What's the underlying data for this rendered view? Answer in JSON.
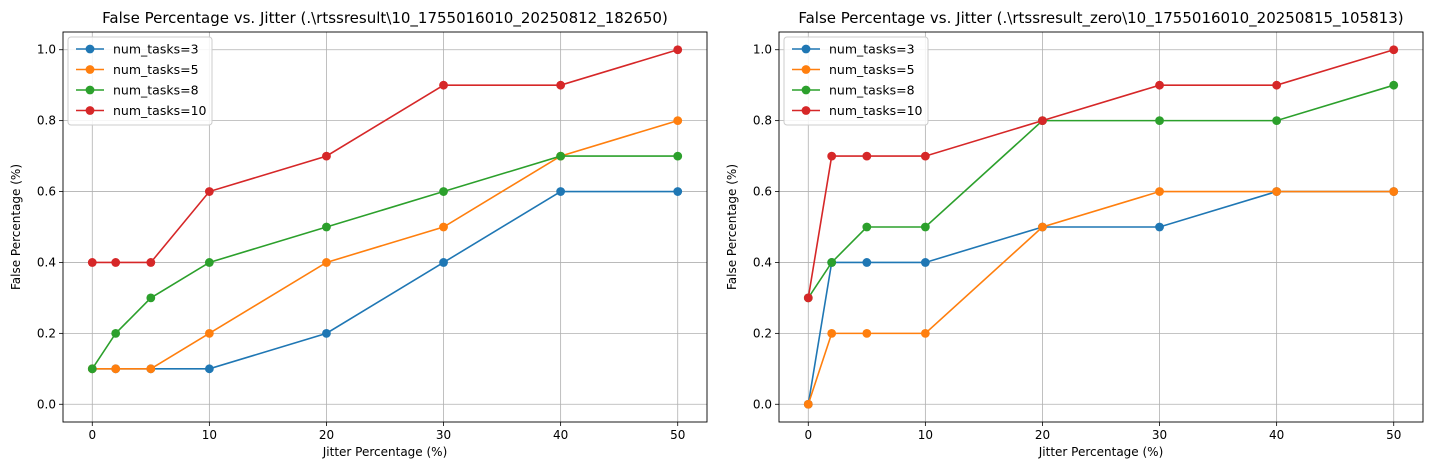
{
  "chart_data": [
    {
      "type": "line",
      "title": "False Percentage vs. Jitter (.\\rtssresult\\10_1755016010_20250812_182650)",
      "xlabel": "Jitter Percentage (%)",
      "ylabel": "False Percentage (%)",
      "xlim": [
        -2.5,
        52.5
      ],
      "ylim": [
        -0.05,
        1.05
      ],
      "xticks": [
        0,
        10,
        20,
        30,
        40,
        50
      ],
      "yticks": [
        0.0,
        0.2,
        0.4,
        0.6,
        0.8,
        1.0
      ],
      "grid": true,
      "legend_position": "upper-left",
      "x": [
        0,
        2,
        5,
        10,
        20,
        30,
        40,
        50
      ],
      "series": [
        {
          "name": "num_tasks=3",
          "color": "#1f77b4",
          "values": [
            0.1,
            0.1,
            0.1,
            0.1,
            0.2,
            0.4,
            0.6,
            0.6
          ]
        },
        {
          "name": "num_tasks=5",
          "color": "#ff7f0e",
          "values": [
            0.1,
            0.1,
            0.1,
            0.2,
            0.4,
            0.5,
            0.7,
            0.8
          ]
        },
        {
          "name": "num_tasks=8",
          "color": "#2ca02c",
          "values": [
            0.1,
            0.2,
            0.3,
            0.4,
            0.5,
            0.6,
            0.7,
            0.7
          ]
        },
        {
          "name": "num_tasks=10",
          "color": "#d62728",
          "values": [
            0.4,
            0.4,
            0.4,
            0.6,
            0.7,
            0.9,
            0.9,
            1.0
          ]
        }
      ]
    },
    {
      "type": "line",
      "title": "False Percentage vs. Jitter (.\\rtssresult_zero\\10_1755016010_20250815_105813)",
      "xlabel": "Jitter Percentage (%)",
      "ylabel": "False Percentage (%)",
      "xlim": [
        -2.5,
        52.5
      ],
      "ylim": [
        -0.05,
        1.05
      ],
      "xticks": [
        0,
        10,
        20,
        30,
        40,
        50
      ],
      "yticks": [
        0.0,
        0.2,
        0.4,
        0.6,
        0.8,
        1.0
      ],
      "grid": true,
      "legend_position": "upper-left",
      "x": [
        0,
        2,
        5,
        10,
        20,
        30,
        40,
        50
      ],
      "series": [
        {
          "name": "num_tasks=3",
          "color": "#1f77b4",
          "values": [
            0.0,
            0.4,
            0.4,
            0.4,
            0.5,
            0.5,
            0.6,
            0.6
          ]
        },
        {
          "name": "num_tasks=5",
          "color": "#ff7f0e",
          "values": [
            0.0,
            0.2,
            0.2,
            0.2,
            0.5,
            0.6,
            0.6,
            0.6
          ]
        },
        {
          "name": "num_tasks=8",
          "color": "#2ca02c",
          "values": [
            0.3,
            0.4,
            0.5,
            0.5,
            0.8,
            0.8,
            0.8,
            0.9
          ]
        },
        {
          "name": "num_tasks=10",
          "color": "#d62728",
          "values": [
            0.3,
            0.7,
            0.7,
            0.7,
            0.8,
            0.9,
            0.9,
            1.0
          ]
        }
      ]
    }
  ]
}
